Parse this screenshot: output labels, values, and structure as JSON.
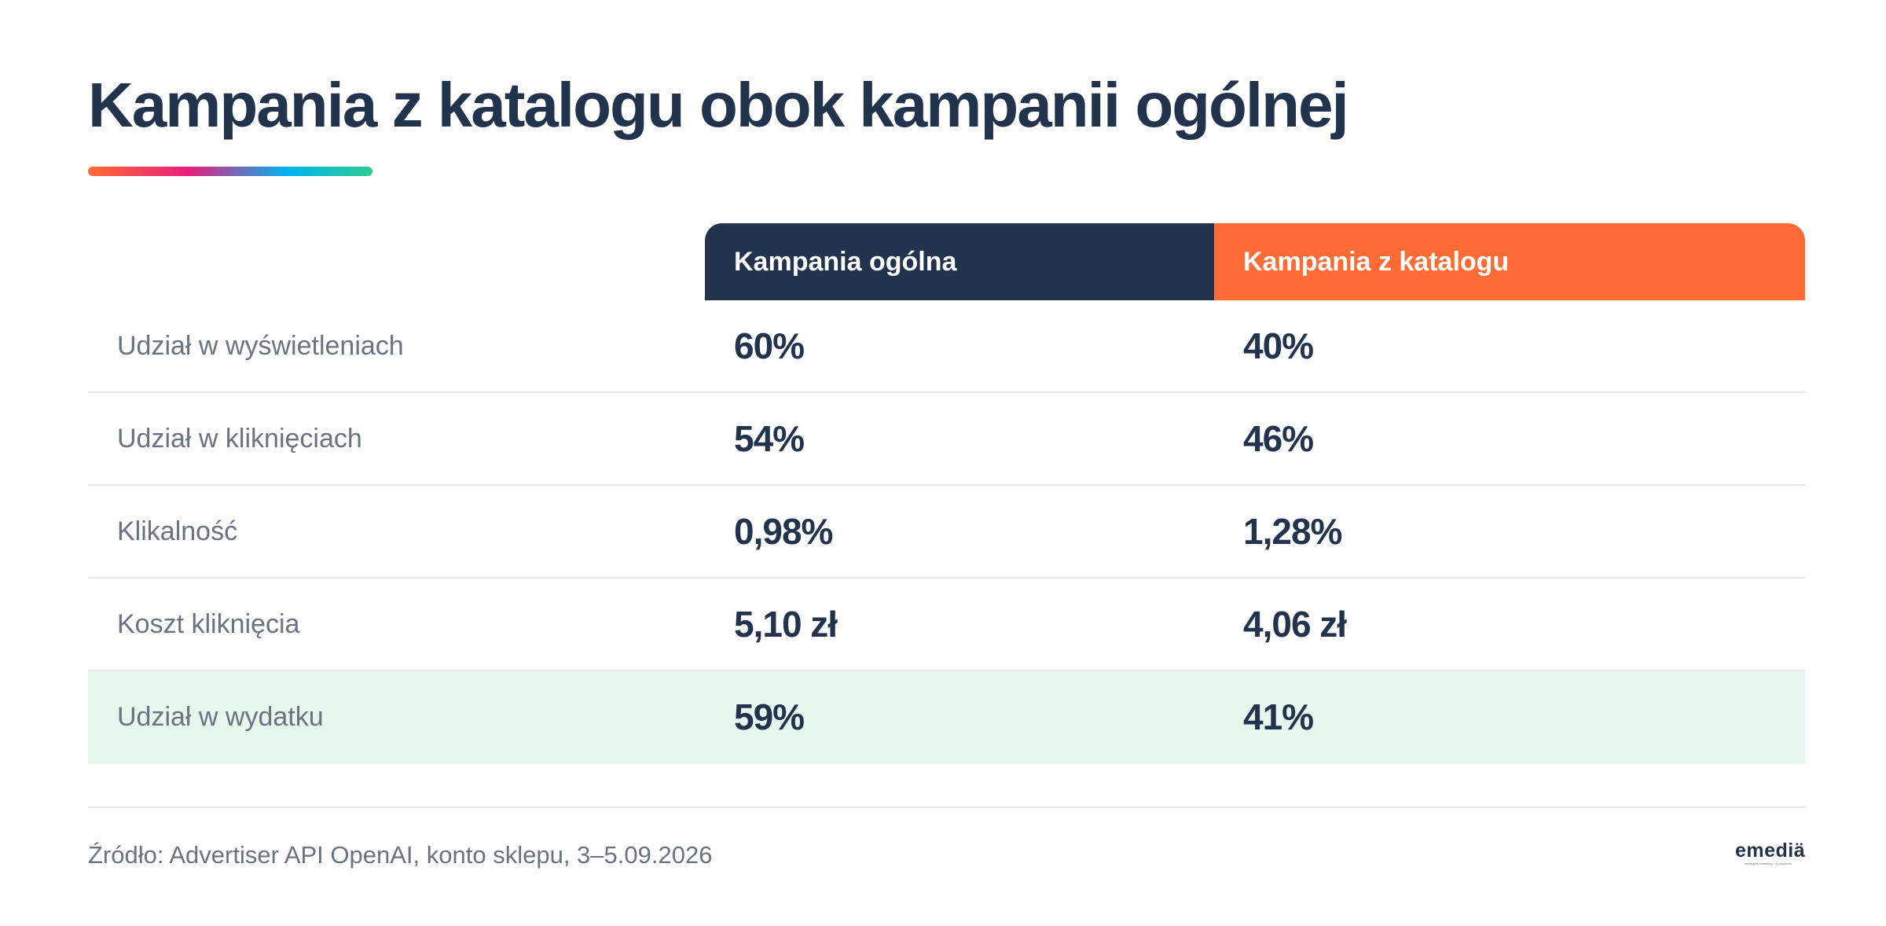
{
  "title": "Kampania z katalogu obok kampanii ogólnej",
  "table": {
    "headers": [
      "Kampania ogólna",
      "Kampania z katalogu"
    ],
    "rows": [
      {
        "label": "Udział w wyświetleniach",
        "general": "60%",
        "catalog": "40%"
      },
      {
        "label": "Udział w kliknięciach",
        "general": "54%",
        "catalog": "46%"
      },
      {
        "label": "Klikalność",
        "general": "0,98%",
        "catalog": "1,28%"
      },
      {
        "label": "Koszt kliknięcia",
        "general": "5,10 zł",
        "catalog": "4,06 zł"
      },
      {
        "label": "Udział w wydatku",
        "general": "59%",
        "catalog": "41%"
      }
    ]
  },
  "source": "Źródło: Advertiser API OpenAI, konto sklepu, 3–5.09.2026",
  "logo": {
    "text": "emediä",
    "tagline": "intelligent marketing · AI solutions"
  },
  "colors": {
    "navy": "#22334e",
    "orange": "#ff6b35",
    "highlight": "#e6f7ee"
  }
}
